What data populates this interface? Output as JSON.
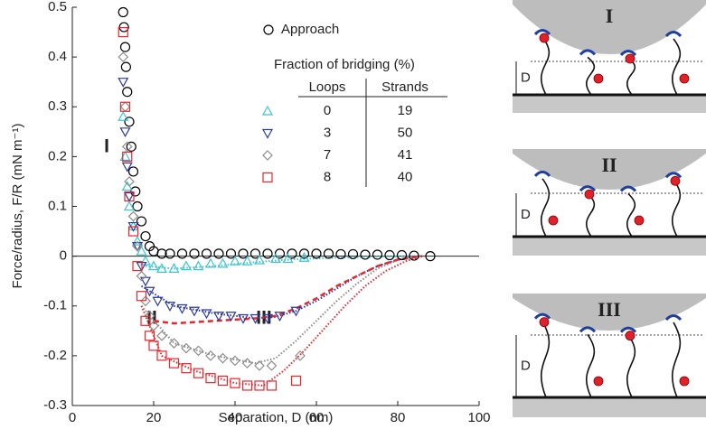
{
  "chart_data": {
    "type": "scatter",
    "xlabel": "Separation, D (nm)",
    "ylabel": "Force/radius, F/R (mN m⁻¹)",
    "xlim": [
      0,
      100
    ],
    "xticks": [
      0,
      20,
      40,
      60,
      80,
      100
    ],
    "ylim": [
      -0.3,
      0.5
    ],
    "yticks": [
      -0.3,
      -0.2,
      -0.1,
      0,
      0.1,
      0.2,
      0.3,
      0.4,
      0.5
    ],
    "zero_line": true,
    "table_title": "Fraction of bridging (%)",
    "table_headers": [
      "Loops",
      "Strands"
    ],
    "annotations": [
      "I",
      "II",
      "III"
    ],
    "series": [
      {
        "name": "Approach",
        "color": "#000000",
        "marker": "circle",
        "x": [
          12.5,
          12.7,
          13,
          13.2,
          13.5,
          14,
          14.5,
          15,
          15.5,
          16,
          17,
          18,
          19,
          20,
          22,
          24,
          27,
          30,
          33,
          36,
          39,
          42,
          45,
          48,
          51,
          54,
          57,
          60,
          63,
          66,
          69,
          72,
          75,
          78,
          81,
          84,
          88
        ],
        "y": [
          0.49,
          0.46,
          0.42,
          0.38,
          0.33,
          0.27,
          0.22,
          0.17,
          0.13,
          0.1,
          0.07,
          0.04,
          0.02,
          0.01,
          0.005,
          0.005,
          0.005,
          0.005,
          0.005,
          0.005,
          0.005,
          0.005,
          0.005,
          0.005,
          0.005,
          0.005,
          0.005,
          0.005,
          0.005,
          0.004,
          0.004,
          0.003,
          0.003,
          0.002,
          0.002,
          0.001,
          0
        ]
      },
      {
        "color": "#3fc4cf",
        "marker": "triangle-up",
        "loops": 0,
        "strands": 19,
        "x": [
          12.5,
          13,
          13.5,
          14,
          15,
          16,
          17,
          18,
          20,
          22,
          25,
          28,
          31,
          34,
          37,
          40,
          43,
          46,
          50,
          53,
          57
        ],
        "y": [
          0.28,
          0.2,
          0.14,
          0.1,
          0.06,
          0.03,
          0.01,
          -0.01,
          -0.02,
          -0.025,
          -0.025,
          -0.02,
          -0.02,
          -0.015,
          -0.015,
          -0.01,
          -0.01,
          -0.008,
          -0.005,
          -0.005,
          -0.003
        ]
      },
      {
        "color": "#2b3a9a",
        "marker": "triangle-down",
        "loops": 3,
        "strands": 50,
        "x": [
          12.5,
          13,
          13.5,
          14,
          15,
          16,
          17,
          18,
          19,
          21,
          24,
          27,
          30,
          33,
          36,
          39,
          42,
          45,
          48,
          51,
          55
        ],
        "y": [
          0.35,
          0.25,
          0.18,
          0.12,
          0.06,
          0.02,
          -0.02,
          -0.05,
          -0.07,
          -0.09,
          -0.1,
          -0.105,
          -0.11,
          -0.115,
          -0.12,
          -0.12,
          -0.125,
          -0.125,
          -0.125,
          -0.12,
          -0.11
        ]
      },
      {
        "color": "#8c8c8c",
        "marker": "diamond",
        "loops": 7,
        "strands": 41,
        "x": [
          12.5,
          13,
          13.5,
          14,
          15,
          16,
          17,
          18,
          19,
          20,
          22,
          25,
          28,
          31,
          34,
          37,
          40,
          43,
          46,
          49,
          56
        ],
        "y": [
          0.4,
          0.3,
          0.22,
          0.15,
          0.08,
          0.02,
          -0.04,
          -0.09,
          -0.12,
          -0.14,
          -0.16,
          -0.175,
          -0.185,
          -0.19,
          -0.2,
          -0.205,
          -0.21,
          -0.215,
          -0.22,
          -0.22,
          -0.2
        ]
      },
      {
        "color": "#e8262c",
        "marker": "square",
        "loops": 8,
        "strands": 40,
        "x": [
          12.5,
          13,
          13.5,
          14,
          15,
          16,
          17,
          18,
          19,
          20,
          22,
          25,
          28,
          31,
          34,
          37,
          40,
          43,
          46,
          49,
          55
        ],
        "y": [
          0.45,
          0.3,
          0.2,
          0.12,
          0.05,
          -0.02,
          -0.08,
          -0.13,
          -0.16,
          -0.18,
          -0.2,
          -0.215,
          -0.225,
          -0.235,
          -0.245,
          -0.25,
          -0.255,
          -0.26,
          -0.26,
          -0.26,
          -0.25
        ]
      }
    ],
    "fits": [
      {
        "color": "#3fc4cf",
        "style": "dotted",
        "x": [
          18,
          25,
          35,
          45,
          55,
          65,
          75,
          84
        ],
        "y": [
          -0.02,
          -0.025,
          -0.02,
          -0.012,
          -0.006,
          -0.003,
          -0.001,
          0
        ]
      },
      {
        "color": "#2b3a9a",
        "style": "dotted",
        "x": [
          17,
          25,
          35,
          45,
          50,
          55,
          60,
          65,
          70,
          75,
          80,
          85
        ],
        "y": [
          -0.06,
          -0.1,
          -0.115,
          -0.125,
          -0.122,
          -0.11,
          -0.09,
          -0.065,
          -0.04,
          -0.02,
          -0.007,
          0
        ]
      },
      {
        "color": "#8c8c8c",
        "style": "dotted",
        "x": [
          17,
          25,
          35,
          45,
          50,
          55,
          60,
          65,
          70,
          75,
          80,
          84
        ],
        "y": [
          -0.1,
          -0.175,
          -0.2,
          -0.215,
          -0.205,
          -0.17,
          -0.13,
          -0.09,
          -0.055,
          -0.025,
          -0.008,
          0
        ]
      },
      {
        "color": "#e8262c",
        "style": "dotted",
        "x": [
          17,
          22,
          30,
          40,
          47,
          52,
          57,
          62,
          67,
          72,
          77,
          82,
          86
        ],
        "y": [
          -0.1,
          -0.2,
          -0.23,
          -0.255,
          -0.26,
          -0.23,
          -0.19,
          -0.145,
          -0.1,
          -0.06,
          -0.03,
          -0.01,
          0
        ]
      },
      {
        "color": "#e8262c",
        "style": "dashed",
        "x": [
          20,
          25,
          35,
          45,
          50,
          55,
          60,
          65,
          70,
          75,
          80,
          86
        ],
        "y": [
          -0.13,
          -0.135,
          -0.13,
          -0.125,
          -0.12,
          -0.105,
          -0.085,
          -0.06,
          -0.04,
          -0.02,
          -0.007,
          0
        ]
      }
    ]
  },
  "schematics": [
    {
      "label": "I",
      "dimension": "D"
    },
    {
      "label": "II",
      "dimension": "D"
    },
    {
      "label": "III",
      "dimension": "D"
    }
  ]
}
